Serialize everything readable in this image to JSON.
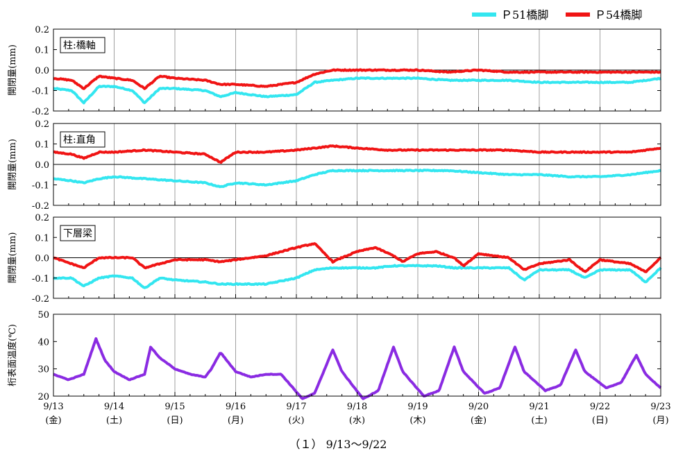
{
  "caption": "（１） 9/13～9/22",
  "colors": {
    "p51": "#33e6f0",
    "p54": "#f01414",
    "temp": "#8a2be2"
  },
  "chart_data": [
    {
      "type": "line",
      "label": "柱:橋軸",
      "ylabel": "開閉量(mm)",
      "ylim": [
        -0.2,
        0.2
      ],
      "yticks": [
        "0.2",
        "0.1",
        "0.0",
        "-0.1",
        "-0.2"
      ],
      "x": [
        0,
        0.3,
        0.5,
        0.75,
        1,
        1.3,
        1.5,
        1.75,
        2,
        2.5,
        2.75,
        3,
        3.5,
        4,
        4.3,
        4.6,
        5,
        5.5,
        6,
        6.5,
        7,
        7.5,
        8,
        8.5,
        9,
        9.5,
        10
      ],
      "series": [
        {
          "name": "P51橋脚",
          "values": [
            -0.09,
            -0.1,
            -0.16,
            -0.08,
            -0.08,
            -0.1,
            -0.16,
            -0.09,
            -0.09,
            -0.1,
            -0.13,
            -0.11,
            -0.13,
            -0.12,
            -0.06,
            -0.05,
            -0.04,
            -0.04,
            -0.04,
            -0.05,
            -0.05,
            -0.05,
            -0.06,
            -0.06,
            -0.06,
            -0.06,
            -0.04
          ]
        },
        {
          "name": "P54橋脚",
          "values": [
            -0.04,
            -0.05,
            -0.09,
            -0.03,
            -0.04,
            -0.05,
            -0.09,
            -0.03,
            -0.04,
            -0.05,
            -0.07,
            -0.07,
            -0.08,
            -0.06,
            -0.02,
            0.0,
            0.0,
            0.0,
            0.0,
            -0.01,
            0.0,
            -0.01,
            -0.01,
            -0.01,
            -0.01,
            -0.01,
            -0.01
          ]
        }
      ]
    },
    {
      "type": "line",
      "label": "柱:直角",
      "ylabel": "開閉量(mm)",
      "ylim": [
        -0.2,
        0.2
      ],
      "yticks": [
        "0.2",
        "0.1",
        "0.0",
        "-0.1",
        "-0.2"
      ],
      "x": [
        0,
        0.3,
        0.5,
        0.75,
        1,
        1.5,
        2,
        2.5,
        2.75,
        3,
        3.5,
        4,
        4.3,
        4.6,
        5,
        5.5,
        6,
        6.5,
        7,
        7.5,
        8,
        8.5,
        9,
        9.5,
        10
      ],
      "series": [
        {
          "name": "P51橋脚",
          "values": [
            -0.07,
            -0.08,
            -0.09,
            -0.07,
            -0.06,
            -0.07,
            -0.08,
            -0.09,
            -0.11,
            -0.09,
            -0.1,
            -0.08,
            -0.05,
            -0.03,
            -0.03,
            -0.03,
            -0.03,
            -0.03,
            -0.04,
            -0.05,
            -0.05,
            -0.06,
            -0.06,
            -0.05,
            -0.03
          ]
        },
        {
          "name": "P54橋脚",
          "values": [
            0.06,
            0.05,
            0.03,
            0.06,
            0.06,
            0.07,
            0.06,
            0.05,
            0.01,
            0.06,
            0.06,
            0.07,
            0.08,
            0.09,
            0.08,
            0.07,
            0.07,
            0.07,
            0.07,
            0.07,
            0.06,
            0.06,
            0.06,
            0.06,
            0.08
          ]
        }
      ]
    },
    {
      "type": "line",
      "label": "下層梁",
      "ylabel": "開閉量(mm)",
      "ylim": [
        -0.2,
        0.2
      ],
      "yticks": [
        "0.2",
        "0.1",
        "0.0",
        "-0.1",
        "-0.2"
      ],
      "x": [
        0,
        0.3,
        0.5,
        0.75,
        1,
        1.3,
        1.5,
        1.75,
        2,
        2.5,
        2.75,
        3,
        3.5,
        4,
        4.3,
        4.6,
        4.75,
        5,
        5.3,
        5.6,
        5.75,
        6,
        6.3,
        6.6,
        6.75,
        7,
        7.5,
        7.75,
        8,
        8.5,
        8.75,
        9,
        9.5,
        9.75,
        10
      ],
      "series": [
        {
          "name": "P51橋脚",
          "values": [
            -0.1,
            -0.1,
            -0.14,
            -0.1,
            -0.09,
            -0.1,
            -0.15,
            -0.1,
            -0.11,
            -0.12,
            -0.13,
            -0.13,
            -0.13,
            -0.1,
            -0.06,
            -0.05,
            -0.05,
            -0.05,
            -0.05,
            -0.04,
            -0.04,
            -0.04,
            -0.04,
            -0.05,
            -0.05,
            -0.05,
            -0.05,
            -0.11,
            -0.06,
            -0.06,
            -0.1,
            -0.06,
            -0.06,
            -0.12,
            -0.05
          ]
        },
        {
          "name": "P54橋脚",
          "values": [
            0.0,
            -0.03,
            -0.05,
            0.0,
            0.0,
            0.0,
            -0.05,
            -0.03,
            -0.01,
            -0.01,
            -0.02,
            -0.01,
            0.01,
            0.05,
            0.07,
            -0.02,
            0.0,
            0.03,
            0.05,
            0.01,
            -0.02,
            0.02,
            0.03,
            0.0,
            -0.04,
            0.02,
            0.0,
            -0.06,
            -0.03,
            -0.01,
            -0.07,
            -0.01,
            -0.03,
            -0.07,
            0.0
          ]
        }
      ]
    },
    {
      "type": "line",
      "label": "",
      "ylabel": "桁表面温度(℃)",
      "ylim": [
        20,
        50
      ],
      "yticks": [
        "50",
        "40",
        "30",
        "20"
      ],
      "x": [
        0,
        0.25,
        0.5,
        0.7,
        0.85,
        1.0,
        1.25,
        1.5,
        1.6,
        1.75,
        2.0,
        2.25,
        2.5,
        2.6,
        2.75,
        3.0,
        3.25,
        3.5,
        3.75,
        4.1,
        4.3,
        4.6,
        4.75,
        5.1,
        5.35,
        5.6,
        5.75,
        6.1,
        6.35,
        6.6,
        6.75,
        7.1,
        7.35,
        7.6,
        7.75,
        8.1,
        8.35,
        8.6,
        8.75,
        9.1,
        9.35,
        9.6,
        9.75,
        10
      ],
      "series": [
        {
          "name": "temp",
          "values": [
            28,
            26,
            28,
            41,
            33,
            29,
            26,
            28,
            38,
            34,
            30,
            28,
            27,
            30,
            36,
            29,
            27,
            28,
            28,
            19,
            21,
            37,
            29,
            19,
            22,
            38,
            29,
            20,
            22,
            38,
            29,
            21,
            23,
            38,
            29,
            22,
            24,
            37,
            29,
            23,
            25,
            35,
            28,
            23
          ]
        }
      ]
    }
  ],
  "xaxis": {
    "dates": [
      "9/13",
      "9/14",
      "9/15",
      "9/16",
      "9/17",
      "9/18",
      "9/19",
      "9/20",
      "9/21",
      "9/22",
      "9/23"
    ],
    "days": [
      "(金)",
      "(土)",
      "(日)",
      "(月)",
      "(火)",
      "(水)",
      "(木)",
      "(金)",
      "(土)",
      "(日)",
      "(月)"
    ]
  },
  "legend": [
    {
      "name": "Ｐ51橋脚",
      "color": "#33e6f0"
    },
    {
      "name": "Ｐ54橋脚",
      "color": "#f01414"
    }
  ]
}
